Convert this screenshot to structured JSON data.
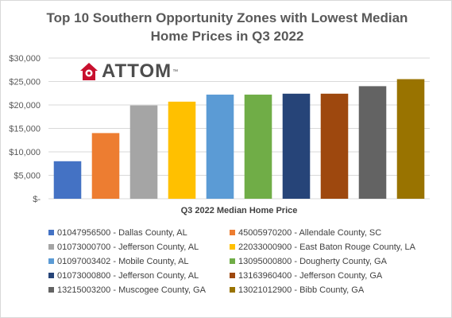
{
  "chart_data": {
    "type": "bar",
    "title_lines": [
      "Top 10 Southern Opportunity Zones with Lowest Median",
      "Home Prices in Q3 2022"
    ],
    "xlabel": "Q3 2022 Median Home Price",
    "ylabel": "",
    "ylim": [
      0,
      30000
    ],
    "yticks": [
      0,
      5000,
      10000,
      15000,
      20000,
      25000,
      30000
    ],
    "ytick_labels": [
      "$-",
      "$5,000",
      "$10,000",
      "$15,000",
      "$20,000",
      "$25,000",
      "$30,000"
    ],
    "grid": true,
    "legend_position": "bottom",
    "series": [
      {
        "name": "01047956500 - Dallas County, AL",
        "value": 8000,
        "color": "#4472c4"
      },
      {
        "name": "45005970200 - Allendale County, SC",
        "value": 14000,
        "color": "#ed7d31"
      },
      {
        "name": "01073000700 - Jefferson County, AL",
        "value": 19900,
        "color": "#a5a5a5"
      },
      {
        "name": "22033000900 - East Baton Rouge County, LA",
        "value": 20700,
        "color": "#ffc000"
      },
      {
        "name": "01097003402 - Mobile County, AL",
        "value": 22200,
        "color": "#5b9bd5"
      },
      {
        "name": "13095000800 - Dougherty County, GA",
        "value": 22200,
        "color": "#70ad47"
      },
      {
        "name": "01073000800 - Jefferson County, AL",
        "value": 22400,
        "color": "#264478"
      },
      {
        "name": "13163960400 - Jefferson County, GA",
        "value": 22400,
        "color": "#9e480e"
      },
      {
        "name": "13215003200 - Muscogee County, GA",
        "value": 24000,
        "color": "#636363"
      },
      {
        "name": "13021012900 - Bibb County, GA",
        "value": 25500,
        "color": "#997300"
      }
    ]
  },
  "logo": {
    "text": "ATTOM",
    "tm": "™",
    "color": "#c8102e"
  }
}
